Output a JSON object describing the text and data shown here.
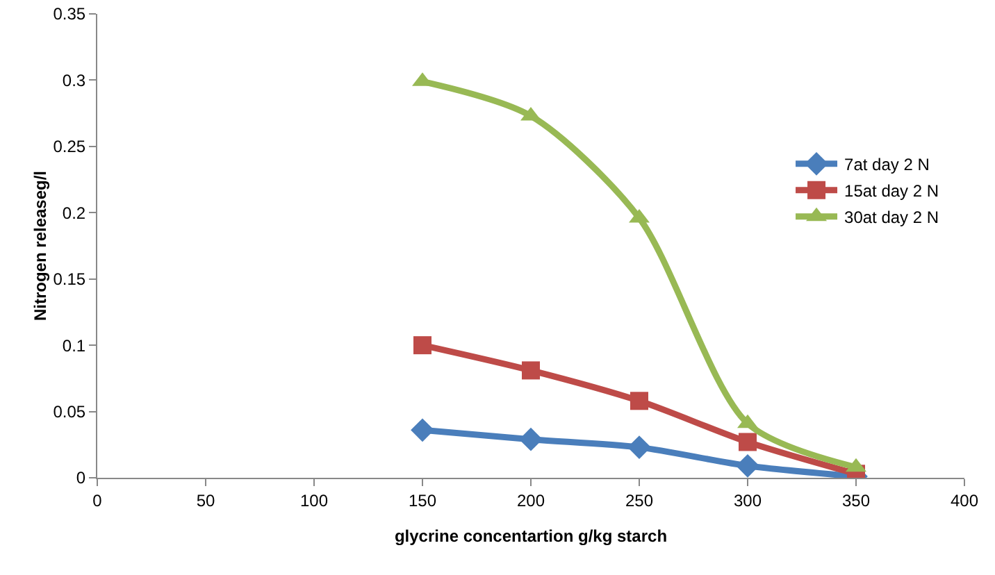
{
  "chart_data": {
    "type": "line",
    "xlabel": "glycrine concentartion g/kg starch",
    "ylabel": "Nitrogen releaseg/l",
    "x": [
      150,
      200,
      250,
      300,
      350
    ],
    "series": [
      {
        "name": "7at day 2 N",
        "color": "#4a7ebb",
        "marker": "diamond",
        "values": [
          0.036,
          0.029,
          0.023,
          0.009,
          0.001
        ]
      },
      {
        "name": "15at day 2 N",
        "color": "#be4b48",
        "marker": "square",
        "values": [
          0.1,
          0.081,
          0.058,
          0.027,
          0.003
        ]
      },
      {
        "name": "30at day 2 N",
        "color": "#98b954",
        "marker": "triangle",
        "values": [
          0.299,
          0.273,
          0.196,
          0.041,
          0.008
        ]
      }
    ],
    "xlim": [
      0,
      400
    ],
    "xticks": [
      0,
      50,
      100,
      150,
      200,
      250,
      300,
      350,
      400
    ],
    "ylim": [
      0,
      0.35
    ],
    "yticks": [
      0,
      0.05,
      0.1,
      0.15,
      0.2,
      0.25,
      0.3,
      0.35
    ],
    "grid": false,
    "legend": "right"
  }
}
